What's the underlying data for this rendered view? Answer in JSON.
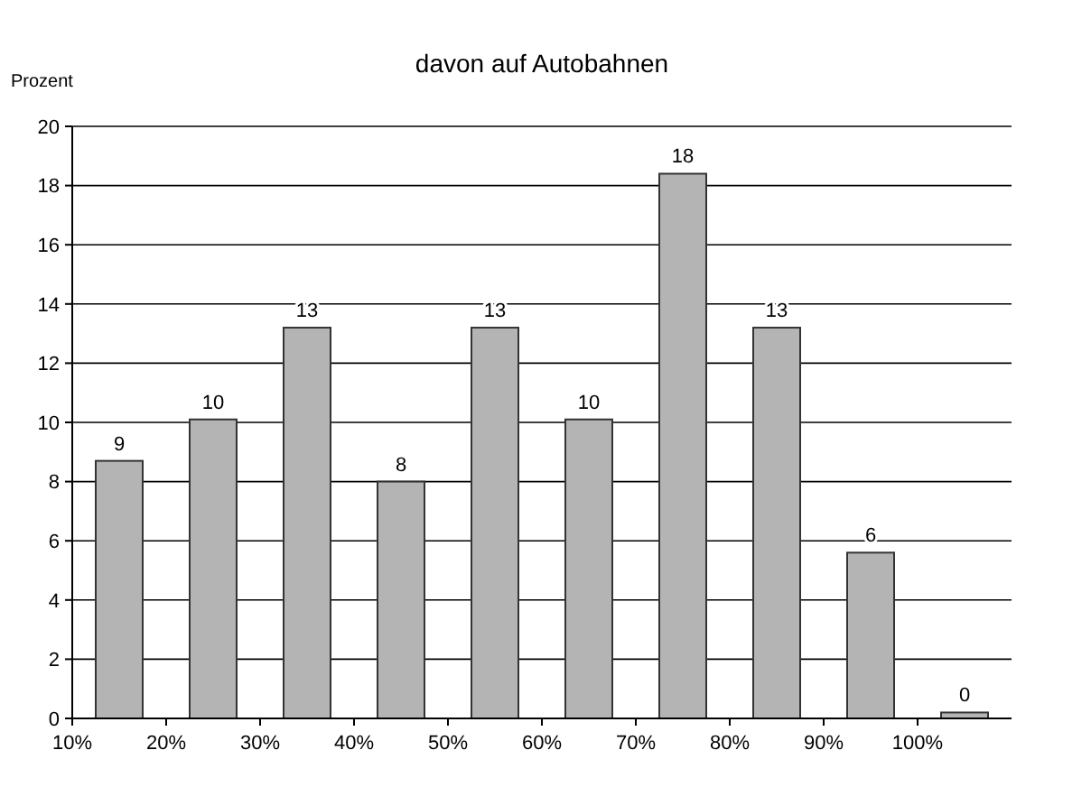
{
  "chart_data": {
    "type": "histogram",
    "title": "davon auf Autobahnen",
    "ylabel": "Prozent",
    "bins": [
      10,
      20,
      30,
      40,
      50,
      60,
      70,
      80,
      90,
      100,
      110
    ],
    "values": [
      8.7,
      10.1,
      13.2,
      8.0,
      13.2,
      10.1,
      18.4,
      13.2,
      5.6,
      0.2
    ],
    "value_labels": [
      "9",
      "10",
      "13",
      "8",
      "13",
      "10",
      "18",
      "13",
      "6",
      "0"
    ],
    "color": "#b4b4b4",
    "xlim": [
      10,
      110
    ],
    "xticks": [
      {
        "value": 10,
        "label": "10%"
      },
      {
        "value": 20,
        "label": "20%"
      },
      {
        "value": 30,
        "label": "30%"
      },
      {
        "value": 40,
        "label": "40%"
      },
      {
        "value": 50,
        "label": "50%"
      },
      {
        "value": 60,
        "label": "60%"
      },
      {
        "value": 70,
        "label": "70%"
      },
      {
        "value": 80,
        "label": "80%"
      },
      {
        "value": 90,
        "label": "90%"
      },
      {
        "value": 100,
        "label": "100%"
      }
    ],
    "ylim": [
      0,
      20
    ],
    "yticks": [
      0,
      2,
      4,
      6,
      8,
      10,
      12,
      14,
      16,
      18,
      20
    ],
    "grid": "y"
  }
}
